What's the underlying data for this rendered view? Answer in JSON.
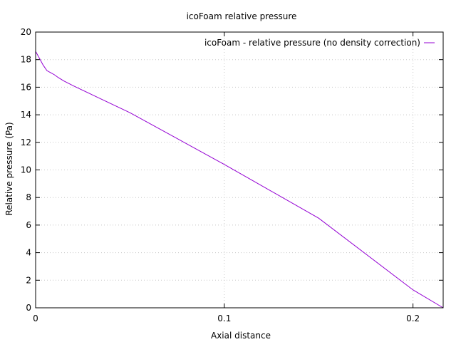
{
  "chart_data": {
    "type": "line",
    "title": "icoFoam relative pressure",
    "xlabel": "Axial distance",
    "ylabel": "Relative pressure (Pa)",
    "xlim": [
      0,
      0.216
    ],
    "ylim": [
      0,
      20
    ],
    "x_ticks": [
      0,
      0.1,
      0.2
    ],
    "x_tick_labels": [
      "0",
      "0.1",
      "0.2"
    ],
    "y_ticks": [
      0,
      2,
      4,
      6,
      8,
      10,
      12,
      14,
      16,
      18,
      20
    ],
    "y_tick_labels": [
      "0",
      "2",
      "4",
      "6",
      "8",
      "10",
      "12",
      "14",
      "16",
      "18",
      "20"
    ],
    "grid": true,
    "legend_position": "top-right",
    "series": [
      {
        "name": "icoFoam - relative pressure (no density correction)",
        "color": "#9400d3",
        "x": [
          0,
          0.002,
          0.004,
          0.006,
          0.008,
          0.01,
          0.012,
          0.015,
          0.02,
          0.03,
          0.05,
          0.1,
          0.15,
          0.2,
          0.216
        ],
        "y": [
          18.6,
          18.1,
          17.6,
          17.2,
          17.05,
          16.9,
          16.7,
          16.45,
          16.1,
          15.45,
          14.15,
          10.4,
          6.5,
          1.3,
          0
        ]
      }
    ]
  }
}
